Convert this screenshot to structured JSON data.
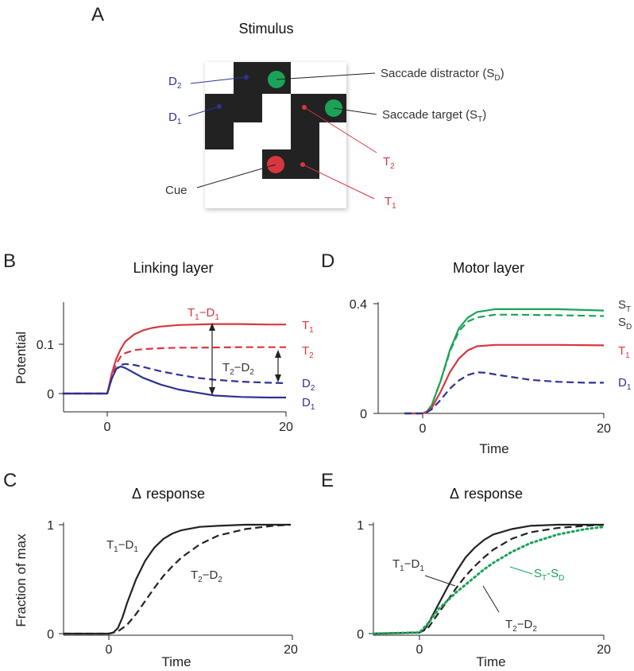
{
  "colors": {
    "red": "#d9363e",
    "blue": "#2d3393",
    "green": "#1aa356",
    "black": "#222222",
    "cell": "#222222"
  },
  "panel_a": {
    "letter": "A",
    "title": "Stimulus",
    "labels": {
      "d2": {
        "main": "D",
        "sub": "2"
      },
      "d1": {
        "main": "D",
        "sub": "1"
      },
      "cue": "Cue",
      "sd": {
        "pre": "Saccade distractor (S",
        "sub": "D",
        "post": ")"
      },
      "st": {
        "pre": "Saccade target (S",
        "sub": "T",
        "post": ")"
      },
      "t2": {
        "main": "T",
        "sub": "2"
      },
      "t1": {
        "main": "T",
        "sub": "1"
      }
    }
  },
  "chart_data": [
    {
      "panel": "B",
      "type": "line",
      "title": "Linking layer",
      "xlabel": "",
      "ylabel": "Potential",
      "xlim": [
        -5,
        20
      ],
      "ylim": [
        -0.02,
        0.16
      ],
      "xticks": [
        "0",
        "20"
      ],
      "yticks": [
        "0",
        "0.1"
      ],
      "series": [
        {
          "name": "T1",
          "color": "#d9363e",
          "style": "solid",
          "x": [
            -5,
            0,
            0.5,
            1,
            1.5,
            2,
            3,
            4,
            5,
            6,
            8,
            10,
            12,
            15,
            18,
            20
          ],
          "values": [
            0,
            0,
            0.04,
            0.07,
            0.09,
            0.105,
            0.12,
            0.128,
            0.133,
            0.136,
            0.139,
            0.14,
            0.141,
            0.141,
            0.14,
            0.14
          ]
        },
        {
          "name": "T2",
          "color": "#d9363e",
          "style": "dashed",
          "x": [
            -5,
            0,
            0.5,
            1,
            1.5,
            2,
            3,
            4,
            6,
            8,
            10,
            15,
            20
          ],
          "values": [
            0,
            0,
            0.035,
            0.06,
            0.075,
            0.082,
            0.088,
            0.09,
            0.092,
            0.093,
            0.093,
            0.094,
            0.094
          ]
        },
        {
          "name": "D2",
          "color": "#2d3393",
          "style": "dashed",
          "x": [
            -5,
            0,
            0.5,
            1,
            1.5,
            2,
            3,
            4,
            6,
            8,
            10,
            12,
            15,
            18,
            20
          ],
          "values": [
            0,
            0,
            0.03,
            0.05,
            0.058,
            0.06,
            0.058,
            0.054,
            0.045,
            0.038,
            0.032,
            0.028,
            0.024,
            0.022,
            0.021
          ]
        },
        {
          "name": "D1",
          "color": "#2d3393",
          "style": "solid",
          "x": [
            -5,
            0,
            0.5,
            1,
            1.5,
            2,
            3,
            4,
            6,
            8,
            10,
            12,
            15,
            18,
            20
          ],
          "values": [
            0,
            0,
            0.03,
            0.05,
            0.055,
            0.052,
            0.042,
            0.032,
            0.018,
            0.008,
            0.002,
            -0.004,
            -0.007,
            -0.008,
            -0.008
          ]
        }
      ]
    },
    {
      "panel": "D",
      "type": "line",
      "title": "Motor layer",
      "xlabel": "Time",
      "ylabel": "",
      "xlim": [
        -5,
        20
      ],
      "ylim": [
        0,
        0.4
      ],
      "xticks": [
        "0",
        "20"
      ],
      "yticks": [
        "0",
        "0.4"
      ],
      "series": [
        {
          "name": "ST",
          "color": "#1aa356",
          "style": "solid",
          "x": [
            -2,
            0,
            0.5,
            1,
            2,
            3,
            4,
            5,
            6,
            8,
            10,
            15,
            20
          ],
          "values": [
            0,
            0,
            0.008,
            0.03,
            0.12,
            0.23,
            0.31,
            0.35,
            0.37,
            0.38,
            0.38,
            0.38,
            0.375
          ]
        },
        {
          "name": "SD",
          "color": "#1aa356",
          "style": "dashed",
          "x": [
            -2,
            0,
            0.5,
            1,
            2,
            3,
            4,
            5,
            6,
            8,
            10,
            15,
            20
          ],
          "values": [
            0,
            0,
            0.008,
            0.03,
            0.12,
            0.225,
            0.3,
            0.335,
            0.35,
            0.36,
            0.36,
            0.358,
            0.355
          ]
        },
        {
          "name": "T1",
          "color": "#d9363e",
          "style": "solid",
          "x": [
            -2,
            0,
            0.5,
            1,
            2,
            3,
            4,
            5,
            6,
            8,
            10,
            15,
            20
          ],
          "values": [
            0,
            0,
            0.006,
            0.02,
            0.08,
            0.15,
            0.2,
            0.23,
            0.245,
            0.25,
            0.25,
            0.25,
            0.248
          ]
        },
        {
          "name": "D1",
          "color": "#2d3393",
          "style": "dashed",
          "x": [
            -2,
            0,
            0.5,
            1,
            2,
            3,
            4,
            5,
            6,
            7,
            8,
            10,
            12,
            15,
            18,
            20
          ],
          "values": [
            0,
            0,
            0.005,
            0.015,
            0.05,
            0.09,
            0.12,
            0.14,
            0.15,
            0.148,
            0.142,
            0.132,
            0.122,
            0.115,
            0.112,
            0.112
          ]
        }
      ]
    },
    {
      "panel": "C",
      "type": "line",
      "title": "response",
      "xlabel": "Time",
      "ylabel": "Fraction of max",
      "xlim": [
        -5,
        20
      ],
      "ylim": [
        0,
        1
      ],
      "xticks": [
        "0",
        "20"
      ],
      "yticks": [
        "0",
        "1"
      ],
      "series": [
        {
          "name": "T1−D1",
          "color": "#222222",
          "style": "solid",
          "x": [
            -5,
            0,
            0.5,
            1,
            1.5,
            2,
            3,
            4,
            5,
            6,
            7,
            8,
            10,
            12,
            15,
            20
          ],
          "values": [
            0,
            0,
            0.01,
            0.05,
            0.15,
            0.28,
            0.5,
            0.67,
            0.79,
            0.87,
            0.92,
            0.95,
            0.98,
            0.99,
            1,
            1
          ]
        },
        {
          "name": "T2−D2",
          "color": "#222222",
          "style": "dashed",
          "x": [
            -5,
            0,
            1,
            2,
            3,
            4,
            5,
            6,
            7,
            8,
            10,
            12,
            15,
            18,
            20
          ],
          "values": [
            0,
            0,
            0.02,
            0.08,
            0.18,
            0.3,
            0.42,
            0.53,
            0.62,
            0.7,
            0.82,
            0.9,
            0.96,
            0.99,
            1
          ]
        }
      ]
    },
    {
      "panel": "E",
      "type": "line",
      "title": "response",
      "xlabel": "Time",
      "ylabel": "",
      "xlim": [
        -5,
        20
      ],
      "ylim": [
        0,
        1
      ],
      "xticks": [
        "0",
        "20"
      ],
      "yticks": [
        "0",
        "1"
      ],
      "series": [
        {
          "name": "T1−D1",
          "color": "#222222",
          "style": "solid",
          "x": [
            -5,
            0,
            0.5,
            1,
            2,
            3,
            4,
            5,
            6,
            7,
            8,
            10,
            12,
            15,
            20
          ],
          "values": [
            0,
            0.01,
            0.03,
            0.1,
            0.26,
            0.42,
            0.57,
            0.7,
            0.79,
            0.86,
            0.91,
            0.96,
            0.99,
            1,
            1
          ]
        },
        {
          "name": "T2−D2",
          "color": "#222222",
          "style": "dashed",
          "x": [
            -5,
            0,
            1,
            2,
            3,
            4,
            5,
            6,
            7,
            8,
            10,
            12,
            15,
            18,
            20
          ],
          "values": [
            0,
            0.01,
            0.06,
            0.18,
            0.3,
            0.42,
            0.53,
            0.62,
            0.7,
            0.77,
            0.87,
            0.93,
            0.97,
            0.99,
            1
          ]
        },
        {
          "name": "ST-SD",
          "color": "#1aa356",
          "style": "dotted",
          "x": [
            -5,
            0,
            1,
            2,
            3,
            4,
            5,
            6,
            7,
            8,
            10,
            12,
            15,
            18,
            20
          ],
          "values": [
            0,
            0.01,
            0.1,
            0.22,
            0.3,
            0.38,
            0.45,
            0.52,
            0.59,
            0.65,
            0.75,
            0.83,
            0.91,
            0.96,
            0.98
          ]
        }
      ]
    }
  ],
  "panel_labels": {
    "b": {
      "letter": "B"
    },
    "c": {
      "letter": "C",
      "delta": "Δ"
    },
    "d": {
      "letter": "D"
    },
    "e": {
      "letter": "E",
      "delta": "Δ"
    }
  },
  "annotations": {
    "b": {
      "t1": {
        "main": "T",
        "sub": "1"
      },
      "t2": {
        "main": "T",
        "sub": "2"
      },
      "d2": {
        "main": "D",
        "sub": "2"
      },
      "d1": {
        "main": "D",
        "sub": "1"
      },
      "t1d1": {
        "a": "T",
        "as": "1",
        "mid": "−D",
        "bs": "1"
      },
      "t2d2": {
        "a": "T",
        "as": "2",
        "mid": "−D",
        "bs": "2"
      }
    },
    "d": {
      "st": {
        "main": "S",
        "sub": "T"
      },
      "sd": {
        "main": "S",
        "sub": "D"
      },
      "t1": {
        "main": "T",
        "sub": "1"
      },
      "d1": {
        "main": "D",
        "sub": "1"
      }
    },
    "c": {
      "t1d1": {
        "a": "T",
        "as": "1",
        "mid": "−D",
        "bs": "1"
      },
      "t2d2": {
        "a": "T",
        "as": "2",
        "mid": "−D",
        "bs": "2"
      }
    },
    "e": {
      "t1d1": {
        "a": "T",
        "as": "1",
        "mid": "−D",
        "bs": "1"
      },
      "t2d2": {
        "a": "T",
        "as": "2",
        "mid": "−D",
        "bs": "2"
      },
      "stsd": {
        "a": "S",
        "as": "T",
        "mid": "-S",
        "bs": "D"
      }
    }
  }
}
